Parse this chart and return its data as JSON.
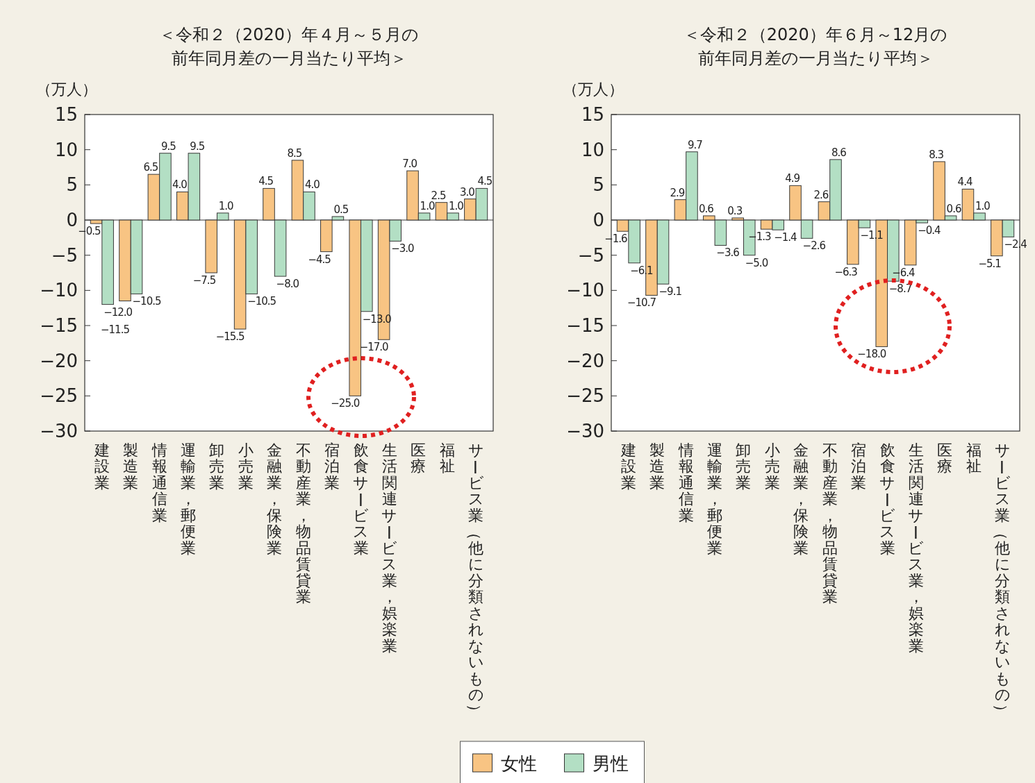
{
  "chart_data": [
    {
      "type": "bar",
      "title": "＜令和２（2020）年４月～５月の前年同月差の一月当たり平均＞",
      "ylabel": "（万人）",
      "categories": [
        "建設業",
        "製造業",
        "情報通信業",
        "運輸業，郵便業",
        "卸売業",
        "小売業",
        "金融業，保険業",
        "不動産業，物品賃貸業",
        "宿泊業",
        "飲食サービス業",
        "生活関連サービス業，娯楽業",
        "医療",
        "福祉",
        "サービス業（他に分類されないもの）"
      ],
      "series": [
        {
          "name": "女性",
          "color": "#f8c483",
          "values": [
            -0.5,
            -11.5,
            6.5,
            4.0,
            -7.5,
            -15.5,
            4.5,
            8.5,
            -4.5,
            -25.0,
            -17.0,
            7.0,
            2.5,
            3.0
          ],
          "value_labels": [
            "−0.5",
            "−11.5",
            "6.5",
            "4.0",
            "−7.5",
            "−15.5",
            "4.5",
            "8.5",
            "−4.5",
            "−25.0",
            "−17.0",
            "7.0",
            "2.5",
            "3.0"
          ]
        },
        {
          "name": "男性",
          "color": "#b3dfc4",
          "values": [
            -12.0,
            -10.5,
            9.5,
            9.5,
            1.0,
            -10.5,
            -8.0,
            4.0,
            0.5,
            -13.0,
            -3.0,
            1.0,
            1.0,
            4.5
          ],
          "value_labels": [
            "−12.0",
            "−10.5",
            "9.5",
            "9.5",
            "1.0",
            "−10.5",
            "−8.0",
            "4.0",
            "0.5",
            "−13.0",
            "−3.0",
            "1.0",
            "1.0",
            "4.5"
          ]
        }
      ],
      "ylim": [
        -30,
        15
      ],
      "yticks": [
        15,
        10,
        5,
        0,
        {
          "value": -5,
          "label": "−5"
        },
        {
          "value": -10,
          "label": "−10"
        },
        {
          "value": -15,
          "label": "−15"
        },
        {
          "value": -20,
          "label": "−20"
        },
        {
          "value": -25,
          "label": "−25"
        },
        {
          "value": -30,
          "label": "−30"
        }
      ],
      "legend": "bottom"
    },
    {
      "type": "bar",
      "title": "＜令和２（2020）年６月～12月の前年同月差の一月当たり平均＞",
      "ylabel": "（万人）",
      "categories": [
        "建設業",
        "製造業",
        "情報通信業",
        "運輸業，郵便業",
        "卸売業",
        "小売業",
        "金融業，保険業",
        "不動産業，物品賃貸業",
        "宿泊業",
        "飲食サービス業",
        "生活関連サービス業，娯楽業",
        "医療",
        "福祉",
        "サービス業（他に分類されないもの）"
      ],
      "series": [
        {
          "color": "#f8c483",
          "values": [
            -1.6,
            -10.7,
            2.9,
            0.6,
            0.3,
            -1.3,
            4.9,
            2.6,
            -6.3,
            -18.0,
            -6.4,
            8.3,
            4.4,
            -5.1
          ],
          "value_labels": [
            "−1.6",
            "−10.7",
            "2.9",
            "0.6",
            "0.3",
            "−1.3",
            "4.9",
            "2.6",
            "−6.3",
            "−18.0",
            "−6.4",
            "8.3",
            "4.4",
            "−5.1"
          ]
        },
        {
          "color": "#b3dfc4",
          "values": [
            -6.1,
            -9.1,
            9.7,
            -3.6,
            -5.0,
            -1.4,
            -2.6,
            8.6,
            -1.1,
            -8.7,
            -0.4,
            0.6,
            1.0,
            -2.4
          ],
          "value_labels": [
            "−6.1",
            "−9.1",
            "9.7",
            "−3.6",
            "−5.0",
            "−1.4",
            "−2.6",
            "8.6",
            "−1.1",
            "−8.7",
            "−0.4",
            "0.6",
            "1.0",
            "−2.4"
          ]
        }
      ],
      "ylim": [
        -30,
        15
      ],
      "yticks": [
        15,
        10,
        5,
        0,
        {
          "value": -5,
          "label": "−5"
        },
        {
          "value": -10,
          "label": "−10"
        },
        {
          "value": -15,
          "label": "−15"
        },
        {
          "value": -20,
          "label": "−20"
        },
        {
          "value": -25,
          "label": "−25"
        },
        {
          "value": -30,
          "label": "−30"
        }
      ]
    }
  ]
}
